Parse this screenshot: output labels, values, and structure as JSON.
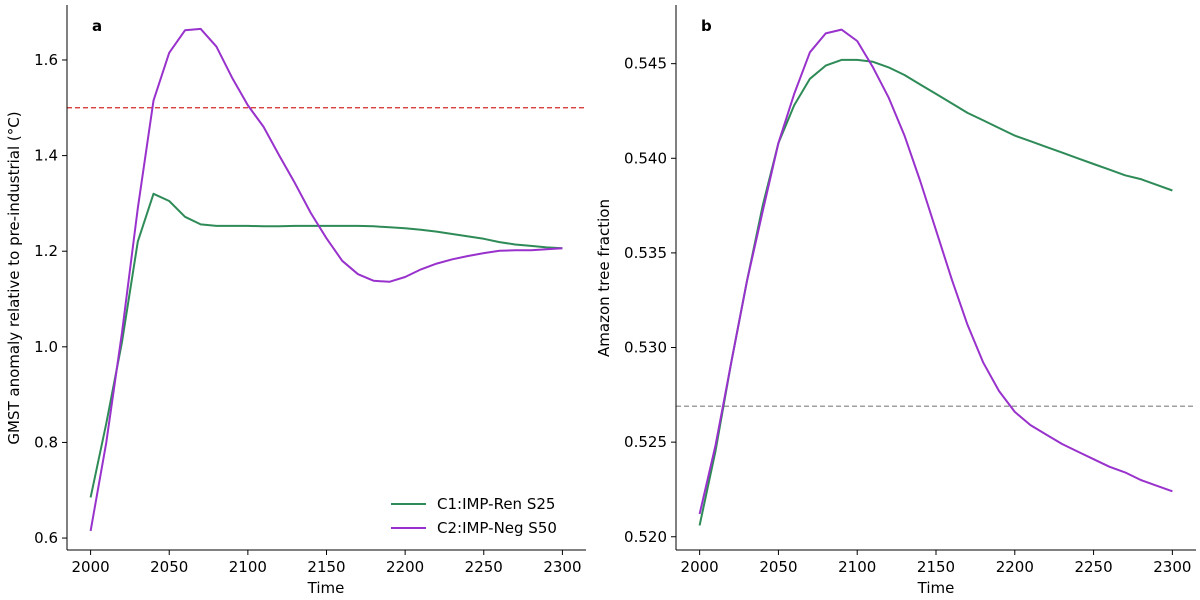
{
  "colors": {
    "c1": "#2e8b57",
    "c2": "#9932cc",
    "threshold_a": "#d62728",
    "threshold_b": "#808080"
  },
  "legend": {
    "placement": "lower-right",
    "entries": [
      "C1:IMP-Ren S25",
      "C2:IMP-Neg S50"
    ]
  },
  "chart_data": [
    {
      "type": "line",
      "panel_label": "a",
      "xlabel": "Time",
      "ylabel": "GMST anomaly relative to pre-industrial (°C)",
      "xlim": [
        1985,
        2315
      ],
      "ylim": [
        0.575,
        1.715
      ],
      "xticks": [
        2000,
        2050,
        2100,
        2150,
        2200,
        2250,
        2300
      ],
      "yticks": [
        0.6,
        0.8,
        1.0,
        1.2,
        1.4,
        1.6
      ],
      "ytick_labels": [
        "0.6",
        "0.8",
        "1.0",
        "1.2",
        "1.4",
        "1.6"
      ],
      "grid": false,
      "hline": {
        "y": 1.5,
        "style": "dashed",
        "color_key": "threshold_a"
      },
      "x": [
        2000,
        2010,
        2020,
        2030,
        2040,
        2050,
        2060,
        2070,
        2080,
        2090,
        2100,
        2110,
        2120,
        2130,
        2140,
        2150,
        2160,
        2170,
        2180,
        2190,
        2200,
        2210,
        2220,
        2230,
        2240,
        2250,
        2260,
        2270,
        2280,
        2290,
        2300
      ],
      "series": [
        {
          "name": "C1:IMP-Ren S25",
          "color_key": "c1",
          "values": [
            0.685,
            0.84,
            1.01,
            1.22,
            1.32,
            1.305,
            1.272,
            1.256,
            1.253,
            1.253,
            1.253,
            1.252,
            1.252,
            1.253,
            1.253,
            1.253,
            1.253,
            1.253,
            1.252,
            1.25,
            1.248,
            1.245,
            1.241,
            1.236,
            1.231,
            1.226,
            1.219,
            1.214,
            1.211,
            1.208,
            1.206
          ]
        },
        {
          "name": "C2:IMP-Neg S50",
          "color_key": "c2",
          "values": [
            0.615,
            0.8,
            1.03,
            1.29,
            1.515,
            1.615,
            1.662,
            1.665,
            1.628,
            1.563,
            1.505,
            1.46,
            1.4,
            1.342,
            1.28,
            1.227,
            1.18,
            1.152,
            1.138,
            1.136,
            1.146,
            1.162,
            1.174,
            1.183,
            1.19,
            1.196,
            1.201,
            1.202,
            1.202,
            1.204,
            1.206
          ]
        }
      ]
    },
    {
      "type": "line",
      "panel_label": "b",
      "xlabel": "Time",
      "ylabel": "Amazon tree fraction",
      "xlim": [
        1985,
        2315
      ],
      "ylim": [
        0.5193,
        0.5481
      ],
      "xticks": [
        2000,
        2050,
        2100,
        2150,
        2200,
        2250,
        2300
      ],
      "yticks": [
        0.52,
        0.525,
        0.53,
        0.535,
        0.54,
        0.545
      ],
      "ytick_labels": [
        "0.520",
        "0.525",
        "0.530",
        "0.535",
        "0.540",
        "0.545"
      ],
      "grid": false,
      "hline": {
        "y": 0.5269,
        "style": "dashed",
        "color_key": "threshold_b"
      },
      "x": [
        2000,
        2010,
        2020,
        2030,
        2040,
        2050,
        2060,
        2070,
        2080,
        2090,
        2100,
        2110,
        2120,
        2130,
        2140,
        2150,
        2160,
        2170,
        2180,
        2190,
        2200,
        2210,
        2220,
        2230,
        2240,
        2250,
        2260,
        2270,
        2280,
        2290,
        2300
      ],
      "series": [
        {
          "name": "C1:IMP-Ren S25",
          "color_key": "c1",
          "values": [
            0.5206,
            0.5245,
            0.5292,
            0.5335,
            0.5375,
            0.5408,
            0.5428,
            0.5442,
            0.5449,
            0.5452,
            0.5452,
            0.5451,
            0.5448,
            0.5444,
            0.5439,
            0.5434,
            0.5429,
            0.5424,
            0.542,
            0.5416,
            0.5412,
            0.5409,
            0.5406,
            0.5403,
            0.54,
            0.5397,
            0.5394,
            0.5391,
            0.5389,
            0.5386,
            0.5383
          ]
        },
        {
          "name": "C2:IMP-Neg S50",
          "color_key": "c2",
          "values": [
            0.5212,
            0.5248,
            0.5292,
            0.5335,
            0.5372,
            0.5408,
            0.5434,
            0.5456,
            0.5466,
            0.5468,
            0.5462,
            0.5448,
            0.5432,
            0.5412,
            0.5388,
            0.5362,
            0.5336,
            0.5312,
            0.5292,
            0.5277,
            0.5266,
            0.5259,
            0.5254,
            0.5249,
            0.5245,
            0.5241,
            0.5237,
            0.5234,
            0.523,
            0.5227,
            0.5224
          ]
        }
      ]
    }
  ]
}
